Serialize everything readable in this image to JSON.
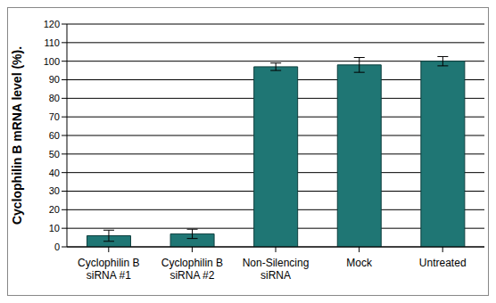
{
  "chart_data": {
    "type": "bar",
    "y_label": "Cyclophilin B mRNA level (%).",
    "categories": [
      "Cyclophilin B siRNA #1",
      "Cyclophilin B siRNA #2",
      "Non-Silencing siRNA",
      "Mock",
      "Untreated"
    ],
    "values": [
      6,
      7,
      97,
      98,
      100
    ],
    "errors": [
      3,
      2.5,
      2,
      4,
      2.5
    ],
    "color": "#1f7674",
    "ylim": [
      0,
      120
    ],
    "yticks": [
      0,
      10,
      20,
      30,
      40,
      50,
      60,
      70,
      80,
      90,
      100,
      110,
      120
    ],
    "grid": true
  }
}
